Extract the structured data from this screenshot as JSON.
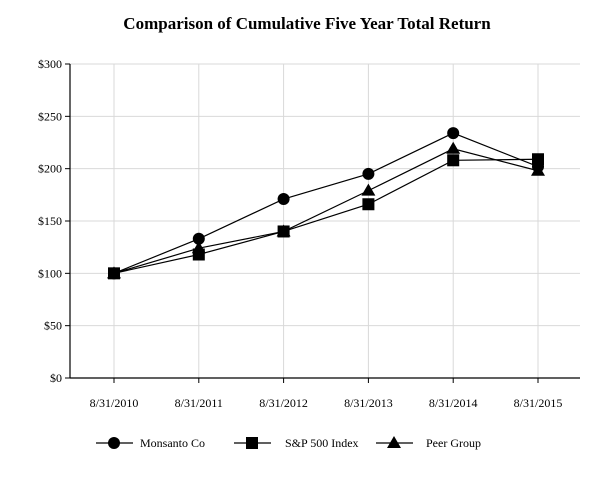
{
  "chart_data": {
    "type": "line",
    "title": "Comparison of Cumulative Five Year Total Return",
    "xlabel": "",
    "ylabel": "",
    "categories": [
      "8/31/2010",
      "8/31/2011",
      "8/31/2012",
      "8/31/2013",
      "8/31/2014",
      "8/31/2015"
    ],
    "ylim": [
      0,
      300
    ],
    "yticks": [
      0,
      50,
      100,
      150,
      200,
      250,
      300
    ],
    "ytick_labels": [
      "$0",
      "$50",
      "$100",
      "$150",
      "$200",
      "$250",
      "$300"
    ],
    "grid": true,
    "legend_position": "bottom",
    "series": [
      {
        "name": "Monsanto Co",
        "marker": "circle",
        "color": "#000000",
        "values": [
          100,
          133,
          171,
          195,
          234,
          202
        ]
      },
      {
        "name": "S&P 500 Index",
        "marker": "square",
        "color": "#000000",
        "values": [
          100,
          118,
          140,
          166,
          208,
          209
        ]
      },
      {
        "name": "Peer Group",
        "marker": "triangle",
        "color": "#000000",
        "values": [
          100,
          124,
          140,
          179,
          219,
          198
        ]
      }
    ]
  }
}
